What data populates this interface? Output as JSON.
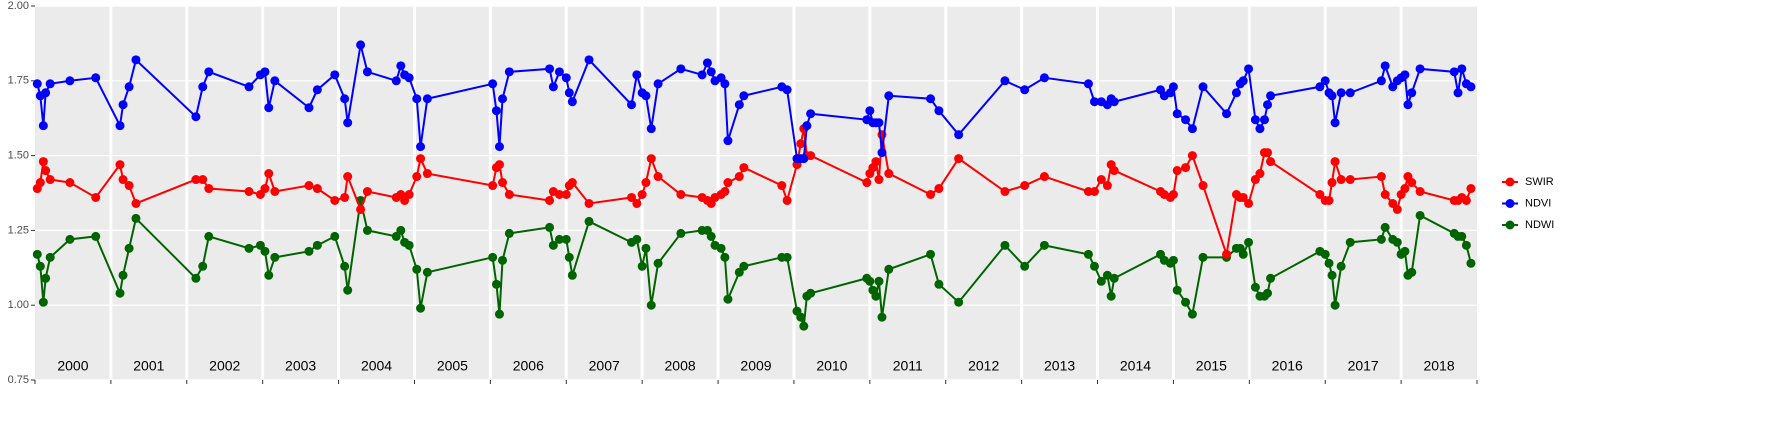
{
  "chart_data": {
    "type": "line",
    "ylim": [
      0.75,
      2.0
    ],
    "yticks": [
      {
        "value": 0.75,
        "label": "0.75"
      },
      {
        "value": 1.0,
        "label": "1.00"
      },
      {
        "value": 1.25,
        "label": "1.25"
      },
      {
        "value": 1.5,
        "label": "1.50"
      },
      {
        "value": 1.75,
        "label": "1.75"
      },
      {
        "value": 2.0,
        "label": "2.00"
      }
    ],
    "xlim": [
      2000,
      2019
    ],
    "year_labels": [
      "2000",
      "2001",
      "2002",
      "2003",
      "2004",
      "2005",
      "2006",
      "2007",
      "2008",
      "2009",
      "2010",
      "2011",
      "2012",
      "2013",
      "2014",
      "2015",
      "2016",
      "2017",
      "2018"
    ],
    "grid": true,
    "legend": "right",
    "x": [
      2000.03,
      2000.07,
      2000.11,
      2000.14,
      2000.2,
      2000.46,
      2000.8,
      2001.12,
      2001.16,
      2001.24,
      2001.33,
      2002.12,
      2002.21,
      2002.29,
      2002.82,
      2002.97,
      2003.03,
      2003.08,
      2003.16,
      2003.61,
      2003.72,
      2003.95,
      2004.08,
      2004.12,
      2004.29,
      2004.38,
      2004.76,
      2004.82,
      2004.87,
      2004.93,
      2005.03,
      2005.08,
      2005.17,
      2006.03,
      2006.08,
      2006.12,
      2006.16,
      2006.25,
      2006.78,
      2006.83,
      2006.91,
      2007.0,
      2007.04,
      2007.08,
      2007.3,
      2007.86,
      2007.93,
      2008.0,
      2008.05,
      2008.12,
      2008.21,
      2008.51,
      2008.79,
      2008.86,
      2008.91,
      2008.96,
      2009.04,
      2009.09,
      2009.13,
      2009.28,
      2009.34,
      2009.84,
      2009.91,
      2010.04,
      2010.09,
      2010.13,
      2010.17,
      2010.22,
      2010.96,
      2011.0,
      2011.04,
      2011.08,
      2011.12,
      2011.16,
      2011.25,
      2011.8,
      2011.91,
      2012.17,
      2012.78,
      2013.04,
      2013.3,
      2013.88,
      2013.96,
      2014.05,
      2014.13,
      2014.18,
      2014.22,
      2014.83,
      2014.88,
      2014.96,
      2015.0,
      2015.05,
      2015.16,
      2015.25,
      2015.39,
      2015.7,
      2015.83,
      2015.88,
      2015.92,
      2015.99,
      2016.08,
      2016.14,
      2016.2,
      2016.24,
      2016.28,
      2016.93,
      2017.0,
      2017.05,
      2017.09,
      2017.13,
      2017.21,
      2017.33,
      2017.74,
      2017.79,
      2017.89,
      2017.95,
      2018.0,
      2018.05,
      2018.09,
      2018.14,
      2018.25,
      2018.7,
      2018.75,
      2018.8,
      2018.86,
      2018.92
    ],
    "series": [
      {
        "name": "SWIR",
        "color": "#ff0000",
        "values": [
          1.39,
          1.41,
          1.48,
          1.45,
          1.42,
          1.41,
          1.36,
          1.47,
          1.42,
          1.4,
          1.34,
          1.42,
          1.42,
          1.39,
          1.38,
          1.37,
          1.39,
          1.44,
          1.38,
          1.4,
          1.39,
          1.35,
          1.36,
          1.43,
          1.32,
          1.38,
          1.36,
          1.37,
          1.35,
          1.37,
          1.43,
          1.49,
          1.44,
          1.4,
          1.46,
          1.47,
          1.41,
          1.37,
          1.35,
          1.38,
          1.37,
          1.37,
          1.4,
          1.41,
          1.34,
          1.36,
          1.34,
          1.37,
          1.41,
          1.49,
          1.43,
          1.37,
          1.36,
          1.35,
          1.34,
          1.36,
          1.37,
          1.38,
          1.41,
          1.43,
          1.46,
          1.4,
          1.35,
          1.47,
          1.54,
          1.59,
          1.5,
          1.5,
          1.41,
          1.44,
          1.46,
          1.48,
          1.42,
          1.57,
          1.44,
          1.37,
          1.39,
          1.49,
          1.38,
          1.4,
          1.43,
          1.38,
          1.38,
          1.42,
          1.4,
          1.47,
          1.45,
          1.38,
          1.37,
          1.36,
          1.37,
          1.45,
          1.46,
          1.5,
          1.4,
          1.17,
          1.37,
          1.36,
          1.36,
          1.34,
          1.42,
          1.44,
          1.51,
          1.51,
          1.48,
          1.37,
          1.35,
          1.35,
          1.41,
          1.48,
          1.42,
          1.42,
          1.43,
          1.37,
          1.34,
          1.32,
          1.37,
          1.39,
          1.43,
          1.41,
          1.38,
          1.35,
          1.35,
          1.36,
          1.35,
          1.39
        ]
      },
      {
        "name": "NDVI",
        "color": "#0000ff",
        "values": [
          1.74,
          1.7,
          1.6,
          1.71,
          1.74,
          1.75,
          1.76,
          1.6,
          1.67,
          1.73,
          1.82,
          1.63,
          1.73,
          1.78,
          1.73,
          1.77,
          1.78,
          1.66,
          1.75,
          1.66,
          1.72,
          1.77,
          1.69,
          1.61,
          1.87,
          1.78,
          1.75,
          1.8,
          1.77,
          1.76,
          1.69,
          1.53,
          1.69,
          1.74,
          1.65,
          1.53,
          1.69,
          1.78,
          1.79,
          1.73,
          1.78,
          1.76,
          1.71,
          1.68,
          1.82,
          1.67,
          1.77,
          1.71,
          1.7,
          1.59,
          1.74,
          1.79,
          1.77,
          1.81,
          1.78,
          1.75,
          1.76,
          1.74,
          1.55,
          1.67,
          1.7,
          1.73,
          1.72,
          1.49,
          1.49,
          1.49,
          1.6,
          1.64,
          1.62,
          1.65,
          1.61,
          1.61,
          1.61,
          1.51,
          1.7,
          1.69,
          1.65,
          1.57,
          1.75,
          1.72,
          1.76,
          1.74,
          1.68,
          1.68,
          1.67,
          1.69,
          1.68,
          1.72,
          1.7,
          1.71,
          1.73,
          1.64,
          1.62,
          1.59,
          1.73,
          1.64,
          1.71,
          1.74,
          1.75,
          1.79,
          1.62,
          1.59,
          1.62,
          1.67,
          1.7,
          1.73,
          1.75,
          1.71,
          1.7,
          1.61,
          1.71,
          1.71,
          1.75,
          1.8,
          1.73,
          1.75,
          1.76,
          1.77,
          1.67,
          1.71,
          1.79,
          1.78,
          1.71,
          1.79,
          1.74,
          1.73
        ]
      },
      {
        "name": "NDWI",
        "color": "#006400",
        "values": [
          1.17,
          1.13,
          1.01,
          1.09,
          1.16,
          1.22,
          1.23,
          1.04,
          1.1,
          1.19,
          1.29,
          1.09,
          1.13,
          1.23,
          1.19,
          1.2,
          1.18,
          1.1,
          1.16,
          1.18,
          1.2,
          1.23,
          1.13,
          1.05,
          1.35,
          1.25,
          1.23,
          1.25,
          1.21,
          1.2,
          1.12,
          0.99,
          1.11,
          1.16,
          1.07,
          0.97,
          1.15,
          1.24,
          1.26,
          1.2,
          1.22,
          1.22,
          1.16,
          1.1,
          1.28,
          1.21,
          1.22,
          1.13,
          1.19,
          1.0,
          1.14,
          1.24,
          1.25,
          1.25,
          1.23,
          1.2,
          1.19,
          1.16,
          1.02,
          1.11,
          1.13,
          1.16,
          1.16,
          0.98,
          0.96,
          0.93,
          1.03,
          1.04,
          1.09,
          1.08,
          1.05,
          1.03,
          1.08,
          0.96,
          1.12,
          1.17,
          1.07,
          1.01,
          1.2,
          1.13,
          1.2,
          1.17,
          1.13,
          1.08,
          1.1,
          1.03,
          1.09,
          1.17,
          1.15,
          1.14,
          1.15,
          1.05,
          1.01,
          0.97,
          1.16,
          1.16,
          1.19,
          1.19,
          1.17,
          1.21,
          1.06,
          1.03,
          1.03,
          1.04,
          1.09,
          1.18,
          1.17,
          1.14,
          1.1,
          1.0,
          1.13,
          1.21,
          1.22,
          1.26,
          1.22,
          1.21,
          1.17,
          1.18,
          1.1,
          1.11,
          1.3,
          1.24,
          1.23,
          1.23,
          1.2,
          1.14
        ]
      }
    ]
  }
}
